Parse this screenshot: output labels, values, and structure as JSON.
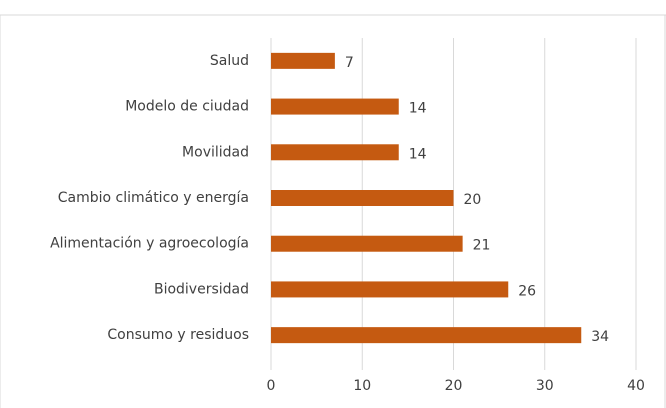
{
  "chart_data": {
    "type": "bar",
    "orientation": "horizontal",
    "categories": [
      "Salud",
      "Modelo de ciudad",
      "Movilidad",
      "Cambio climático y energía",
      "Alimentación y agroecología",
      "Biodiversidad",
      "Consumo y residuos"
    ],
    "values": [
      7,
      14,
      14,
      20,
      21,
      26,
      34
    ],
    "color": "#c55a11",
    "xlim": [
      0,
      40
    ],
    "xticks": [
      0,
      10,
      20,
      30,
      40
    ],
    "grid": true
  }
}
